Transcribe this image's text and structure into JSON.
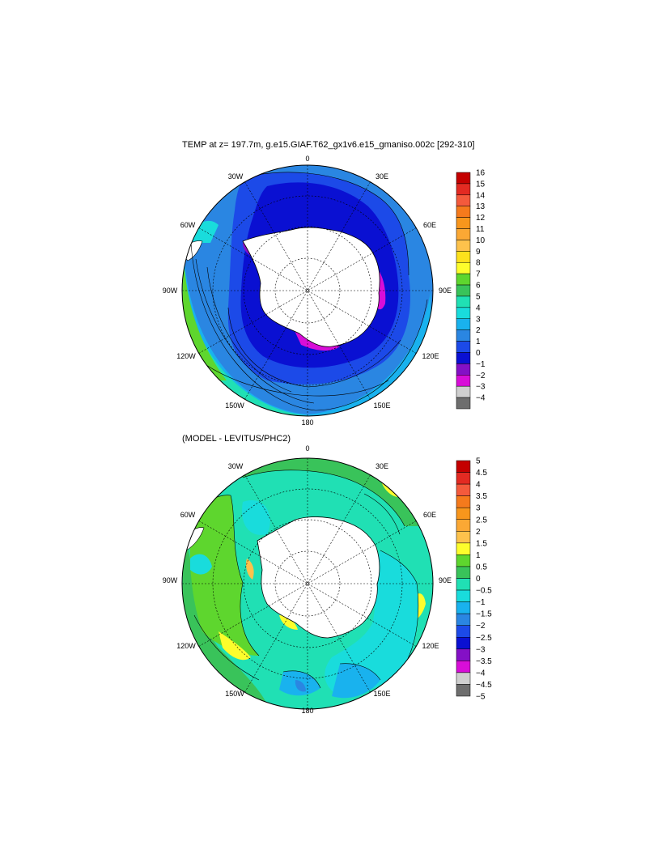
{
  "panels": [
    {
      "title": "TEMP at z= 197.7m, g.e15.GIAF.T62_gx1v6.e15_gmaniso.002c [292-310]",
      "lon_labels": {
        "top": "0",
        "tr": "30E",
        "rt": "60E",
        "right": "90E",
        "rb": "120E",
        "br": "150E",
        "bottom": "180",
        "bl": "150W",
        "lb": "120W",
        "left": "90W",
        "lt": "60W",
        "tl": "30W"
      },
      "colorbar": {
        "labels": [
          "16",
          "15",
          "14",
          "13",
          "12",
          "11",
          "10",
          "9",
          "8",
          "7",
          "6",
          "5",
          "4",
          "3",
          "2",
          "1",
          "0",
          "−1",
          "−2",
          "−3",
          "−4"
        ],
        "colors": [
          "#c40000",
          "#e32a22",
          "#f45a3c",
          "#f57a1c",
          "#f8961c",
          "#fba834",
          "#fdc24c",
          "#fde11c",
          "#fdfd2c",
          "#5ed62e",
          "#39c35a",
          "#20e0b4",
          "#19dcdc",
          "#19b2ee",
          "#2a86e2",
          "#1c4ae8",
          "#0a10d2",
          "#8410c6",
          "#d80ed8",
          "#cfcfcf",
          "#6e6e6e"
        ]
      }
    },
    {
      "title": "(MODEL - LEVITUS/PHC2)",
      "lon_labels": {
        "top": "0",
        "tr": "30E",
        "rt": "60E",
        "right": "90E",
        "rb": "120E",
        "br": "150E",
        "bottom": "180",
        "bl": "150W",
        "lb": "120W",
        "left": "90W",
        "lt": "60W",
        "tl": "30W"
      },
      "colorbar": {
        "labels": [
          "5",
          "4.5",
          "4",
          "3.5",
          "3",
          "2.5",
          "2",
          "1.5",
          "1",
          "0.5",
          "0",
          "−0.5",
          "−1",
          "−1.5",
          "−2",
          "−2.5",
          "−3",
          "−3.5",
          "−4",
          "−4.5",
          "−5"
        ],
        "colors": [
          "#c40000",
          "#e32a22",
          "#f45a3c",
          "#f57a1c",
          "#f8961c",
          "#fba834",
          "#fdc24c",
          "#fdfd2c",
          "#5ed62e",
          "#39c35a",
          "#20e0b4",
          "#19dcdc",
          "#19b2ee",
          "#2a86e2",
          "#1c4ae8",
          "#0a10d2",
          "#8410c6",
          "#d80ed8",
          "#cfcfcf",
          "#6e6e6e"
        ]
      }
    }
  ]
}
